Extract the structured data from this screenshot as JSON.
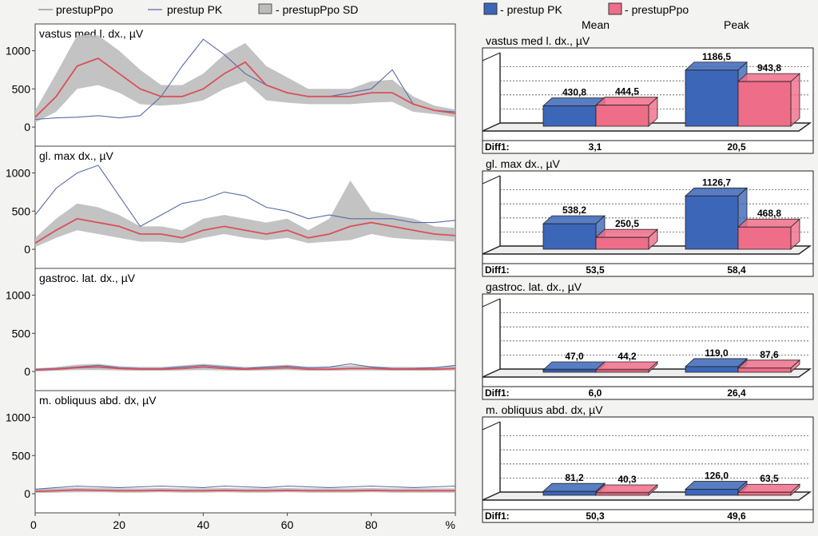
{
  "legend_left": {
    "mean_label": "prestupPpo",
    "pk_label": "prestup PK",
    "sd_label": "prestupPpo SD"
  },
  "legend_right": {
    "pk_label": "prestup PK",
    "ppo_label": "prestupPpo",
    "mean_heading": "Mean",
    "peak_heading": "Peak",
    "diff_label": "Diff1:"
  },
  "colors": {
    "ppo_mean": "#d9505a",
    "pk_line": "#5a6aa8",
    "sd_band": "#bcbcbc",
    "bar_pk": "#3c66b8",
    "bar_ppo": "#ee6d88"
  },
  "chart_data": [
    {
      "type": "line",
      "title": "vastus med l. dx., µV",
      "x": [
        0,
        5,
        10,
        15,
        20,
        25,
        30,
        35,
        40,
        45,
        50,
        55,
        60,
        65,
        70,
        75,
        80,
        85,
        90,
        95,
        100
      ],
      "xlim": [
        0,
        100
      ],
      "xticks": [
        "0",
        "20",
        "40",
        "60",
        "80",
        "%"
      ],
      "ylim": [
        -250,
        1350
      ],
      "yticks": [
        0,
        500,
        1000
      ],
      "series": [
        {
          "name": "prestupPpo",
          "values": [
            130,
            400,
            800,
            900,
            700,
            500,
            400,
            400,
            500,
            700,
            850,
            550,
            450,
            400,
            400,
            400,
            450,
            450,
            300,
            220,
            180
          ]
        },
        {
          "name": "prestup PK",
          "values": [
            100,
            120,
            130,
            150,
            120,
            150,
            400,
            800,
            1150,
            950,
            700,
            550,
            450,
            400,
            400,
            450,
            500,
            750,
            300,
            220,
            200
          ]
        },
        {
          "name": "prestupPpo SD",
          "lower": [
            60,
            200,
            500,
            550,
            450,
            300,
            280,
            300,
            350,
            500,
            600,
            350,
            320,
            300,
            300,
            300,
            320,
            330,
            200,
            170,
            130
          ],
          "upper": [
            220,
            700,
            1200,
            1200,
            1000,
            750,
            550,
            550,
            700,
            950,
            1100,
            800,
            650,
            500,
            500,
            500,
            600,
            620,
            400,
            280,
            230
          ]
        }
      ]
    },
    {
      "type": "line",
      "title": "gl. max dx., µV",
      "x": [
        0,
        5,
        10,
        15,
        20,
        25,
        30,
        35,
        40,
        45,
        50,
        55,
        60,
        65,
        70,
        75,
        80,
        85,
        90,
        95,
        100
      ],
      "xlim": [
        0,
        100
      ],
      "xticks": [
        "0",
        "20",
        "40",
        "60",
        "80",
        "%"
      ],
      "ylim": [
        -250,
        1350
      ],
      "yticks": [
        0,
        500,
        1000
      ],
      "series": [
        {
          "name": "prestupPpo",
          "values": [
            80,
            250,
            400,
            350,
            300,
            200,
            200,
            150,
            250,
            300,
            250,
            200,
            250,
            150,
            200,
            300,
            350,
            300,
            250,
            200,
            180
          ]
        },
        {
          "name": "prestup PK",
          "values": [
            450,
            800,
            1000,
            1100,
            700,
            300,
            450,
            600,
            650,
            750,
            700,
            550,
            500,
            400,
            450,
            400,
            400,
            400,
            350,
            350,
            380
          ]
        },
        {
          "name": "prestupPpo SD",
          "lower": [
            30,
            150,
            250,
            200,
            150,
            100,
            100,
            80,
            150,
            200,
            150,
            120,
            150,
            80,
            100,
            120,
            200,
            150,
            130,
            120,
            100
          ],
          "upper": [
            150,
            400,
            600,
            550,
            450,
            300,
            300,
            250,
            400,
            450,
            400,
            350,
            400,
            250,
            400,
            900,
            500,
            450,
            400,
            300,
            280
          ]
        }
      ]
    },
    {
      "type": "line",
      "title": "gastroc. lat. dx., µV",
      "x": [
        0,
        5,
        10,
        15,
        20,
        25,
        30,
        35,
        40,
        45,
        50,
        55,
        60,
        65,
        70,
        75,
        80,
        85,
        90,
        95,
        100
      ],
      "xlim": [
        0,
        100
      ],
      "xticks": [
        "0",
        "20",
        "40",
        "60",
        "80",
        "%"
      ],
      "ylim": [
        -250,
        1350
      ],
      "yticks": [
        0,
        500,
        1000
      ],
      "series": [
        {
          "name": "prestupPpo",
          "values": [
            20,
            30,
            50,
            60,
            40,
            30,
            30,
            40,
            60,
            40,
            30,
            40,
            50,
            30,
            30,
            40,
            40,
            30,
            30,
            30,
            40
          ]
        },
        {
          "name": "prestup PK",
          "values": [
            30,
            40,
            60,
            80,
            50,
            40,
            40,
            60,
            80,
            60,
            40,
            60,
            70,
            50,
            60,
            100,
            60,
            40,
            40,
            50,
            80
          ]
        },
        {
          "name": "prestupPpo SD",
          "lower": [
            0,
            10,
            20,
            20,
            15,
            10,
            10,
            15,
            20,
            15,
            10,
            15,
            20,
            10,
            10,
            15,
            15,
            10,
            10,
            10,
            15
          ],
          "upper": [
            40,
            60,
            90,
            100,
            70,
            60,
            60,
            80,
            100,
            80,
            60,
            70,
            90,
            60,
            60,
            80,
            70,
            60,
            60,
            60,
            70
          ]
        }
      ]
    },
    {
      "type": "line",
      "title": "m. obliquus abd. dx, µV",
      "x": [
        0,
        5,
        10,
        15,
        20,
        25,
        30,
        35,
        40,
        45,
        50,
        55,
        60,
        65,
        70,
        75,
        80,
        85,
        90,
        95,
        100
      ],
      "xlim": [
        0,
        100
      ],
      "xticks": [
        "0",
        "20",
        "40",
        "60",
        "80",
        "%"
      ],
      "ylim": [
        -250,
        1350
      ],
      "yticks": [
        0,
        500,
        1000
      ],
      "series": [
        {
          "name": "prestupPpo",
          "values": [
            30,
            40,
            50,
            45,
            40,
            40,
            45,
            40,
            40,
            45,
            40,
            40,
            45,
            40,
            40,
            40,
            45,
            40,
            40,
            40,
            40
          ]
        },
        {
          "name": "prestup PK",
          "values": [
            60,
            80,
            100,
            90,
            80,
            90,
            100,
            90,
            80,
            100,
            90,
            80,
            100,
            90,
            80,
            90,
            100,
            90,
            80,
            90,
            100
          ]
        },
        {
          "name": "prestupPpo SD",
          "lower": [
            10,
            15,
            20,
            20,
            15,
            15,
            20,
            15,
            15,
            20,
            15,
            15,
            20,
            15,
            15,
            15,
            20,
            15,
            15,
            15,
            15
          ],
          "upper": [
            60,
            70,
            80,
            75,
            70,
            70,
            75,
            70,
            70,
            75,
            70,
            70,
            75,
            70,
            70,
            70,
            75,
            70,
            70,
            70,
            70
          ]
        }
      ]
    },
    {
      "type": "bar",
      "title": "vastus med l. dx., µV",
      "categories": [
        "Mean",
        "Peak"
      ],
      "series": [
        {
          "name": "prestup PK",
          "values": [
            430.8,
            1186.5
          ],
          "labels": [
            "430,8",
            "1186,5"
          ]
        },
        {
          "name": "prestupPpo",
          "values": [
            444.5,
            943.8
          ],
          "labels": [
            "444,5",
            "943,8"
          ]
        }
      ],
      "diff": [
        "3,1",
        "20,5"
      ],
      "ylim": [
        0,
        1250
      ]
    },
    {
      "type": "bar",
      "title": "gl. max dx., µV",
      "categories": [
        "Mean",
        "Peak"
      ],
      "series": [
        {
          "name": "prestup PK",
          "values": [
            538.2,
            1126.7
          ],
          "labels": [
            "538,2",
            "1126,7"
          ]
        },
        {
          "name": "prestupPpo",
          "values": [
            250.5,
            468.8
          ],
          "labels": [
            "250,5",
            "468,8"
          ]
        }
      ],
      "diff": [
        "53,5",
        "58,4"
      ],
      "ylim": [
        0,
        1250
      ]
    },
    {
      "type": "bar",
      "title": "gastroc. lat. dx., µV",
      "categories": [
        "Mean",
        "Peak"
      ],
      "series": [
        {
          "name": "prestup PK",
          "values": [
            47.0,
            119.0
          ],
          "labels": [
            "47,0",
            "119,0"
          ]
        },
        {
          "name": "prestupPpo",
          "values": [
            44.2,
            87.6
          ],
          "labels": [
            "44,2",
            "87,6"
          ]
        }
      ],
      "diff": [
        "6,0",
        "26,4"
      ],
      "ylim": [
        0,
        1250
      ]
    },
    {
      "type": "bar",
      "title": "m. obliquus abd. dx, µV",
      "categories": [
        "Mean",
        "Peak"
      ],
      "series": [
        {
          "name": "prestup PK",
          "values": [
            81.2,
            126.0
          ],
          "labels": [
            "81,2",
            "126,0"
          ]
        },
        {
          "name": "prestupPpo",
          "values": [
            40.3,
            63.5
          ],
          "labels": [
            "40,3",
            "63,5"
          ]
        }
      ],
      "diff": [
        "50,3",
        "49,6"
      ],
      "ylim": [
        0,
        1250
      ]
    }
  ]
}
